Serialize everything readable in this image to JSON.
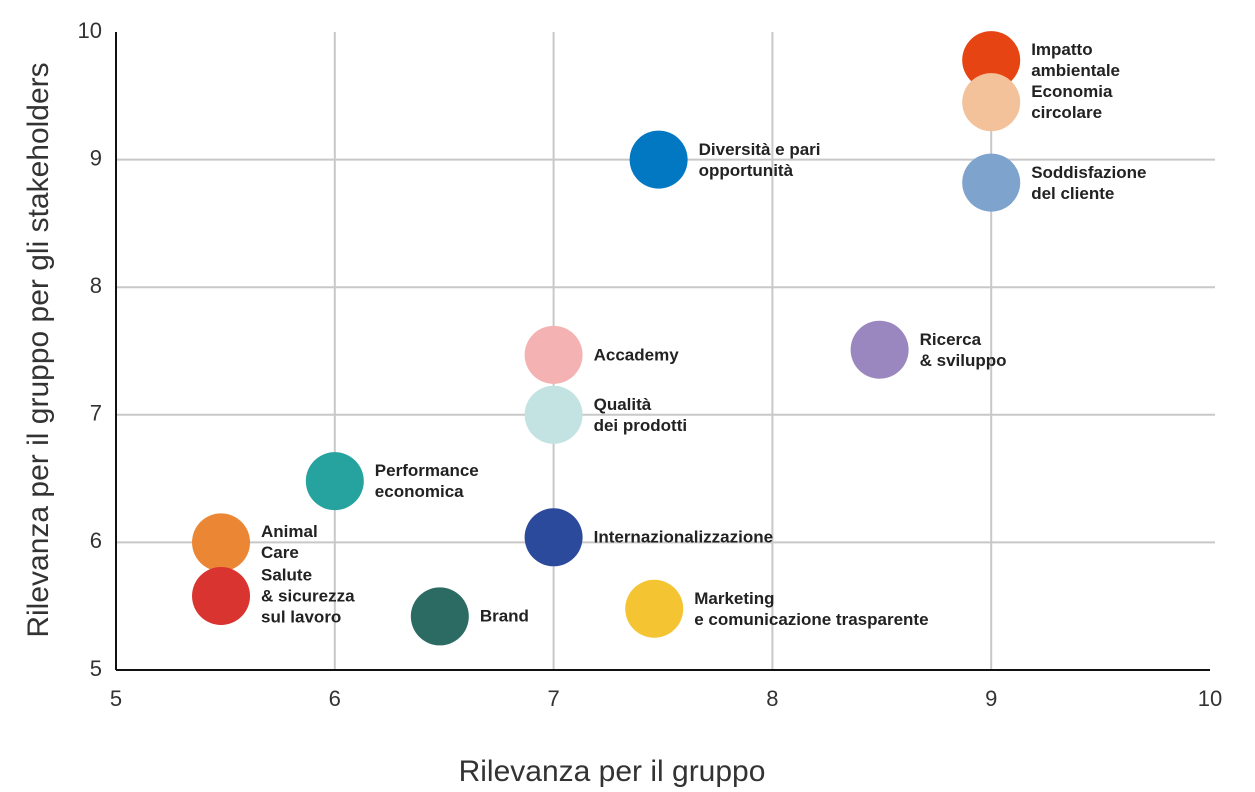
{
  "chart_data": {
    "type": "scatter",
    "xlabel": "Rilevanza per il gruppo",
    "ylabel": "Rilevanza per il gruppo per gli stakeholders",
    "labels": [
      "Impatto\nambientale",
      "Economia\ncircolare",
      "Soddisfazione\ndel cliente",
      "Diversità e pari\nopportunità",
      "Ricerca\n& sviluppo",
      "Accademy",
      "Qualità\ndei prodotti",
      "Performance\neconomica",
      "Internazionalizzazione",
      "Animal\nCare",
      "Salute\n& sicurezza\nsul lavoro",
      "Brand",
      "Marketing\ne comunicazione trasparente"
    ],
    "x": [
      9,
      9,
      9,
      7.48,
      8.49,
      7,
      7,
      6,
      7,
      5.48,
      5.48,
      6.48,
      7.46
    ],
    "values": [
      9.78,
      9.45,
      8.82,
      9,
      7.51,
      7.47,
      7,
      6.48,
      6.04,
      6,
      5.58,
      5.42,
      5.48
    ],
    "colors": [
      "#e64413",
      "#f3c29b",
      "#7ea3cd",
      "#0278c2",
      "#9b87bf",
      "#f4b3b2",
      "#c3e2e2",
      "#26a39f",
      "#2c4a9b",
      "#ea8634",
      "#d9342f",
      "#2b6b63",
      "#f4c433"
    ],
    "xlim": [
      5,
      10
    ],
    "ylim": [
      5,
      10
    ],
    "xticks": [
      5,
      6,
      7,
      8,
      9,
      10
    ],
    "yticks": [
      5,
      6,
      7,
      8,
      9,
      10
    ],
    "grid": true
  }
}
